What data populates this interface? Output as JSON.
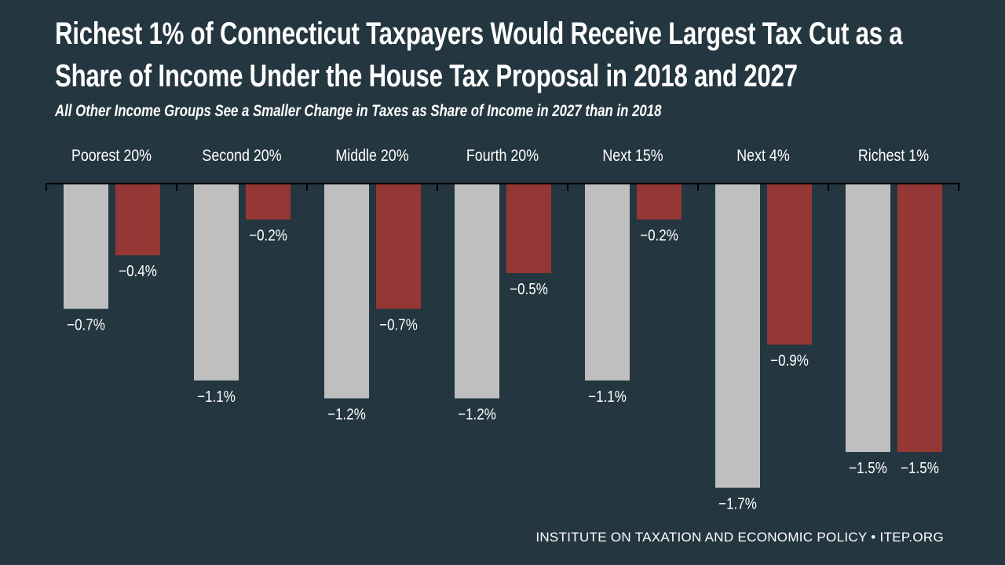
{
  "title_line1": "Richest 1% of Connecticut Taxpayers Would Receive Largest Tax Cut as a",
  "title_line2": "Share of Income Under the House Tax Proposal in 2018 and 2027",
  "subtitle": "All Other Income Groups See a Smaller Change in Taxes as Share of Income in 2027 than in 2018",
  "source": "INSTITUTE ON TAXATION AND ECONOMIC POLICY • ITEP.ORG",
  "colors": {
    "background": "#243640",
    "series1": "#bfbfbf",
    "series2": "#953735"
  },
  "chart_data": {
    "type": "bar",
    "title": "Richest 1% of Connecticut Taxpayers Would Receive Largest Tax Cut as a Share of Income Under the House Tax Proposal in 2018 and 2027",
    "subtitle": "All Other Income Groups See a Smaller Change in Taxes as Share of Income in 2027 than in 2018",
    "categories": [
      "Poorest 20%",
      "Second 20%",
      "Middle 20%",
      "Fourth 20%",
      "Next 15%",
      "Next 4%",
      "Richest 1%"
    ],
    "category_axis_position": "top",
    "series": [
      {
        "values": [
          -0.7,
          -1.1,
          -1.2,
          -1.2,
          -1.1,
          -1.7,
          -1.5
        ],
        "labels": [
          "−0.7%",
          "−1.1%",
          "−1.2%",
          "−1.2%",
          "−1.1%",
          "−1.7%",
          "−1.5%"
        ],
        "color": "#bfbfbf"
      },
      {
        "values": [
          -0.4,
          -0.2,
          -0.7,
          -0.5,
          -0.2,
          -0.9,
          -1.5
        ],
        "labels": [
          "−0.4%",
          "−0.2%",
          "−0.7%",
          "−0.5%",
          "−0.2%",
          "−0.9%",
          "−1.5%"
        ],
        "color": "#953735"
      }
    ],
    "ylim": [
      -1.7,
      0
    ],
    "grid": false,
    "legend": "none"
  }
}
